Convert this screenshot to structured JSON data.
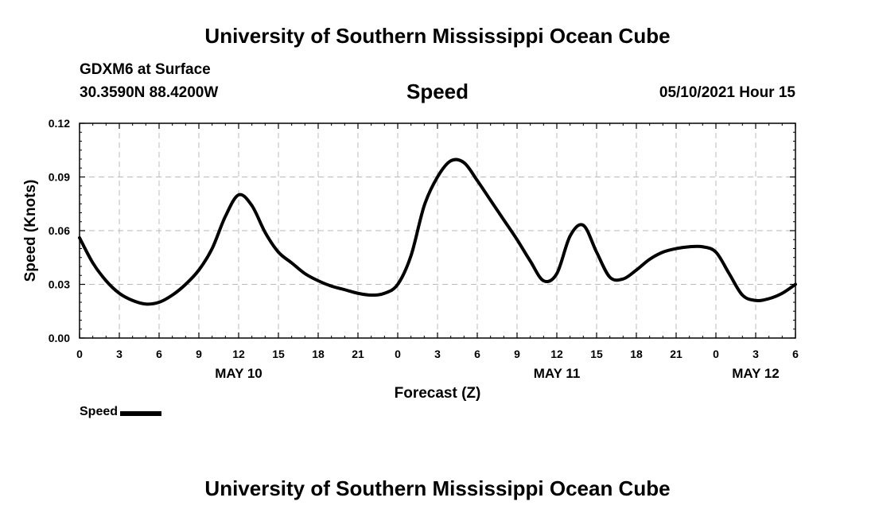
{
  "header": {
    "title": "University of Southern Mississippi Ocean Cube",
    "station": "GDXM6 at Surface",
    "coords": "30.3590N  88.4200W",
    "param": "Speed",
    "datetime": "05/10/2021 Hour 15"
  },
  "footer": {
    "title": "University of Southern Mississippi Ocean Cube"
  },
  "legend": {
    "label": "Speed",
    "color": "#000000"
  },
  "chart_data": {
    "type": "line",
    "title": "Speed",
    "xlabel": "Forecast (Z)",
    "ylabel": "Speed (Knots)",
    "xlim": [
      0,
      54
    ],
    "ylim": [
      0,
      0.12
    ],
    "grid": true,
    "x_ticks": [
      0,
      3,
      6,
      9,
      12,
      15,
      18,
      21,
      24,
      27,
      30,
      33,
      36,
      39,
      42,
      45,
      48,
      51,
      54
    ],
    "x_tick_labels": [
      "0",
      "3",
      "6",
      "9",
      "12",
      "15",
      "18",
      "21",
      "0",
      "3",
      "6",
      "9",
      "12",
      "15",
      "18",
      "21",
      "0",
      "3",
      "6"
    ],
    "y_ticks": [
      0,
      0.03,
      0.06,
      0.09,
      0.12
    ],
    "y_tick_labels": [
      "0.00",
      "0.03",
      "0.06",
      "0.09",
      "0.12"
    ],
    "date_labels": [
      {
        "x": 12,
        "label": "MAY 10"
      },
      {
        "x": 36,
        "label": "MAY 11"
      },
      {
        "x": 51,
        "label": "MAY 12"
      }
    ],
    "series": [
      {
        "name": "Speed",
        "x": [
          0,
          1,
          2,
          3,
          4,
          5,
          6,
          7,
          8,
          9,
          10,
          11,
          12,
          13,
          14,
          15,
          16,
          17,
          18,
          19,
          20,
          21,
          22,
          23,
          24,
          25,
          26,
          27,
          28,
          29,
          30,
          31,
          32,
          33,
          34,
          35,
          36,
          37,
          38,
          39,
          40,
          41,
          42,
          43,
          44,
          45,
          46,
          47,
          48,
          49,
          50,
          51,
          52,
          53,
          54
        ],
        "values": [
          0.056,
          0.042,
          0.032,
          0.025,
          0.021,
          0.019,
          0.02,
          0.024,
          0.03,
          0.038,
          0.05,
          0.068,
          0.08,
          0.074,
          0.059,
          0.048,
          0.042,
          0.036,
          0.032,
          0.029,
          0.027,
          0.025,
          0.024,
          0.025,
          0.03,
          0.046,
          0.074,
          0.09,
          0.099,
          0.098,
          0.088,
          0.077,
          0.066,
          0.055,
          0.043,
          0.032,
          0.036,
          0.057,
          0.063,
          0.048,
          0.034,
          0.033,
          0.038,
          0.044,
          0.048,
          0.05,
          0.051,
          0.051,
          0.048,
          0.036,
          0.024,
          0.021,
          0.022,
          0.025,
          0.03
        ]
      }
    ]
  }
}
